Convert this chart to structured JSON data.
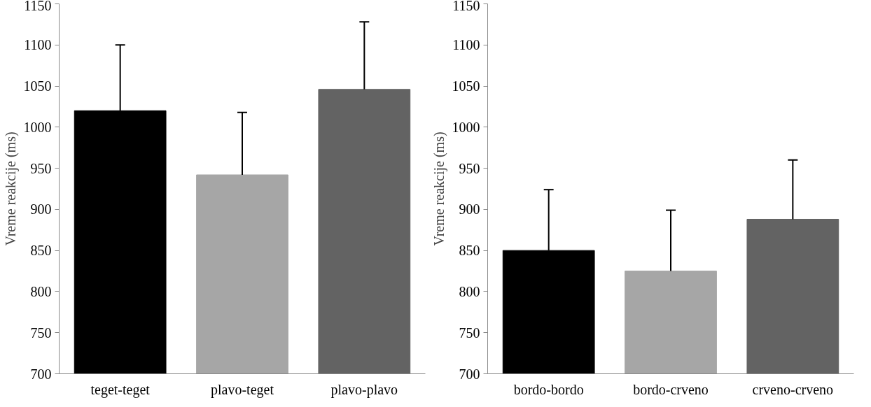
{
  "chart_data": [
    {
      "type": "bar",
      "ylabel": "Vreme reakcije (ms)",
      "categories": [
        "teget-teget",
        "plavo-teget",
        "plavo-plavo"
      ],
      "values": [
        1020,
        942,
        1046
      ],
      "colors": [
        "#000000",
        "#a6a6a6",
        "#636363"
      ],
      "errors": [
        [
          1020,
          1100
        ],
        [
          942,
          1018
        ],
        [
          1046,
          1128
        ]
      ],
      "ylim": [
        700,
        1150
      ],
      "yticks": [
        700,
        750,
        800,
        850,
        900,
        950,
        1000,
        1050,
        1100,
        1150
      ],
      "grid": false
    },
    {
      "type": "bar",
      "ylabel": "Vreme reakcije (ms)",
      "categories": [
        "bordo-bordo",
        "bordo-crveno",
        "crveno-crveno"
      ],
      "values": [
        850,
        825,
        888
      ],
      "colors": [
        "#000000",
        "#a6a6a6",
        "#636363"
      ],
      "errors": [
        [
          850,
          924
        ],
        [
          825,
          899
        ],
        [
          888,
          960
        ]
      ],
      "ylim": [
        700,
        1150
      ],
      "yticks": [
        700,
        750,
        800,
        850,
        900,
        950,
        1000,
        1050,
        1100,
        1150
      ],
      "grid": false
    }
  ]
}
